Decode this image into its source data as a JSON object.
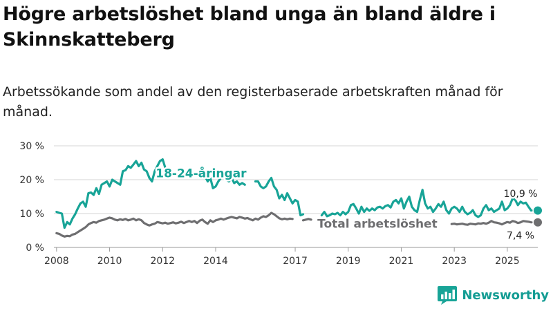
{
  "title": "Högre arbetslöshet bland unga än bland äldre i Skinnskatteberg",
  "subtitle": "Arbetssökande som andel av den registerbaserade arbetskraften månad för månad.",
  "brand": {
    "name": "Newsworthy",
    "icon": "newsworthy-logo-icon"
  },
  "colors": {
    "youth": "#18a497",
    "total": "#6e6e70",
    "grid": "#d6d6d6",
    "text": "#333333"
  },
  "chart_data": {
    "type": "line",
    "title": "Högre arbetslöshet bland unga än bland äldre i Skinnskatteberg",
    "xlabel": "",
    "ylabel": "",
    "ylim": [
      0,
      30
    ],
    "xlim": [
      2007.9,
      2026.15
    ],
    "yticks": [
      0,
      10,
      20,
      30
    ],
    "ytick_labels": [
      "0 %",
      "10 %",
      "20 %",
      "30 %"
    ],
    "xticks": [
      2008,
      2010,
      2012,
      2014,
      2017,
      2019,
      2021,
      2023,
      2025
    ],
    "xtick_labels": [
      "2008",
      "2010",
      "2012",
      "2014",
      "2017",
      "2019",
      "2021",
      "2023",
      "2025"
    ],
    "legend": "inline labels on lines",
    "series": [
      {
        "name": "18-24-åringar",
        "label": "18-24-åringar",
        "end_label": "10,9 %",
        "last_value": 10.9,
        "points": [
          [
            2008.0,
            10.5
          ],
          [
            2008.1,
            10.2
          ],
          [
            2008.2,
            10.0
          ],
          [
            2008.3,
            5.8
          ],
          [
            2008.4,
            7.5
          ],
          [
            2008.5,
            6.8
          ],
          [
            2008.6,
            8.5
          ],
          [
            2008.7,
            9.8
          ],
          [
            2008.8,
            11.5
          ],
          [
            2008.9,
            13.0
          ],
          [
            2009.0,
            13.5
          ],
          [
            2009.1,
            12.0
          ],
          [
            2009.2,
            16.0
          ],
          [
            2009.3,
            16.2
          ],
          [
            2009.4,
            15.5
          ],
          [
            2009.5,
            17.5
          ],
          [
            2009.6,
            15.8
          ],
          [
            2009.7,
            18.5
          ],
          [
            2009.8,
            19.0
          ],
          [
            2009.9,
            19.5
          ],
          [
            2010.0,
            18.0
          ],
          [
            2010.1,
            20.0
          ],
          [
            2010.2,
            19.5
          ],
          [
            2010.3,
            19.0
          ],
          [
            2010.4,
            18.5
          ],
          [
            2010.5,
            22.5
          ],
          [
            2010.6,
            22.8
          ],
          [
            2010.7,
            24.0
          ],
          [
            2010.8,
            23.5
          ],
          [
            2010.9,
            24.5
          ],
          [
            2011.0,
            25.5
          ],
          [
            2011.1,
            24.0
          ],
          [
            2011.2,
            25.0
          ],
          [
            2011.3,
            23.0
          ],
          [
            2011.4,
            22.5
          ],
          [
            2011.5,
            20.5
          ],
          [
            2011.6,
            19.5
          ],
          [
            2011.7,
            22.5
          ],
          [
            2011.8,
            24.0
          ],
          [
            2011.9,
            25.5
          ],
          [
            2012.0,
            26.0
          ],
          [
            2012.1,
            23.5
          ],
          null,
          [
            2013.6,
            21.0
          ],
          [
            2013.7,
            19.5
          ],
          [
            2013.8,
            20.5
          ],
          [
            2013.9,
            17.5
          ],
          [
            2014.0,
            18.0
          ],
          [
            2014.1,
            19.5
          ],
          [
            2014.2,
            20.5
          ],
          null,
          [
            2014.4,
            20.0
          ],
          [
            2014.5,
            19.5
          ],
          [
            2014.6,
            20.5
          ],
          [
            2014.7,
            19.0
          ],
          [
            2014.8,
            19.5
          ],
          [
            2014.9,
            18.5
          ],
          [
            2015.0,
            19.0
          ],
          [
            2015.1,
            18.5
          ],
          null,
          [
            2015.5,
            19.5
          ],
          [
            2015.6,
            19.5
          ],
          [
            2015.7,
            18.0
          ],
          [
            2015.8,
            17.5
          ],
          [
            2015.9,
            18.0
          ],
          [
            2016.0,
            19.5
          ],
          [
            2016.1,
            20.5
          ],
          [
            2016.2,
            18.0
          ],
          [
            2016.3,
            17.0
          ],
          [
            2016.4,
            14.5
          ],
          [
            2016.5,
            15.5
          ],
          [
            2016.6,
            14.0
          ],
          [
            2016.7,
            16.0
          ],
          [
            2016.8,
            14.5
          ],
          [
            2016.9,
            13.0
          ],
          [
            2017.0,
            14.0
          ],
          [
            2017.1,
            13.5
          ],
          [
            2017.2,
            9.5
          ],
          [
            2017.3,
            9.8
          ],
          null,
          [
            2018.0,
            9.5
          ],
          [
            2018.1,
            10.5
          ],
          [
            2018.2,
            9.2
          ],
          [
            2018.3,
            9.5
          ],
          [
            2018.4,
            10.0
          ],
          [
            2018.5,
            9.8
          ],
          [
            2018.6,
            10.2
          ],
          [
            2018.7,
            9.5
          ],
          [
            2018.8,
            10.5
          ],
          [
            2018.9,
            9.8
          ],
          [
            2019.0,
            10.5
          ],
          [
            2019.1,
            12.5
          ],
          [
            2019.2,
            12.8
          ],
          [
            2019.3,
            11.5
          ],
          [
            2019.4,
            10.0
          ],
          [
            2019.5,
            12.0
          ],
          [
            2019.6,
            10.5
          ],
          [
            2019.7,
            11.5
          ],
          [
            2019.8,
            10.8
          ],
          [
            2019.9,
            11.5
          ],
          [
            2020.0,
            11.0
          ],
          [
            2020.1,
            11.8
          ],
          [
            2020.2,
            12.0
          ],
          [
            2020.3,
            11.5
          ],
          [
            2020.4,
            12.2
          ],
          [
            2020.5,
            12.5
          ],
          [
            2020.6,
            11.8
          ],
          [
            2020.7,
            13.5
          ],
          [
            2020.8,
            14.0
          ],
          [
            2020.9,
            13.0
          ],
          [
            2021.0,
            14.5
          ],
          [
            2021.1,
            11.5
          ],
          [
            2021.2,
            13.5
          ],
          [
            2021.3,
            15.0
          ],
          [
            2021.4,
            12.0
          ],
          [
            2021.5,
            11.0
          ],
          [
            2021.6,
            10.5
          ],
          [
            2021.7,
            14.0
          ],
          [
            2021.8,
            17.0
          ],
          [
            2021.9,
            13.0
          ],
          [
            2022.0,
            11.5
          ],
          [
            2022.1,
            12.0
          ],
          [
            2022.2,
            10.5
          ],
          [
            2022.3,
            11.5
          ],
          [
            2022.4,
            12.8
          ],
          [
            2022.5,
            12.0
          ],
          [
            2022.6,
            13.5
          ],
          [
            2022.7,
            11.0
          ],
          [
            2022.8,
            10.0
          ],
          [
            2022.9,
            11.5
          ],
          [
            2023.0,
            12.0
          ],
          [
            2023.1,
            11.5
          ],
          [
            2023.2,
            10.5
          ],
          [
            2023.3,
            12.0
          ],
          [
            2023.4,
            10.5
          ],
          [
            2023.5,
            9.8
          ],
          [
            2023.6,
            10.2
          ],
          [
            2023.7,
            11.0
          ],
          [
            2023.8,
            9.5
          ],
          [
            2023.9,
            9.0
          ],
          [
            2024.0,
            9.5
          ],
          [
            2024.1,
            11.5
          ],
          [
            2024.2,
            12.5
          ],
          [
            2024.3,
            11.0
          ],
          [
            2024.4,
            11.5
          ],
          [
            2024.5,
            10.5
          ],
          [
            2024.6,
            11.0
          ],
          [
            2024.7,
            11.5
          ],
          [
            2024.8,
            13.5
          ],
          [
            2024.9,
            11.0
          ],
          [
            2025.0,
            11.5
          ],
          [
            2025.1,
            12.5
          ],
          [
            2025.2,
            14.5
          ],
          [
            2025.3,
            14.0
          ],
          [
            2025.4,
            12.5
          ],
          [
            2025.5,
            13.5
          ],
          [
            2025.6,
            13.0
          ],
          [
            2025.7,
            13.2
          ],
          [
            2025.8,
            12.0
          ],
          [
            2025.9,
            10.9
          ]
        ]
      },
      {
        "name": "Total arbetslöshet",
        "label": "Total arbetslöshet",
        "end_label": "7,4 %",
        "last_value": 7.4,
        "points": [
          [
            2008.0,
            4.2
          ],
          [
            2008.1,
            4.0
          ],
          [
            2008.2,
            3.5
          ],
          [
            2008.3,
            3.2
          ],
          [
            2008.4,
            3.4
          ],
          [
            2008.5,
            3.3
          ],
          [
            2008.6,
            3.8
          ],
          [
            2008.7,
            4.0
          ],
          [
            2008.8,
            4.5
          ],
          [
            2008.9,
            5.0
          ],
          [
            2009.0,
            5.5
          ],
          [
            2009.1,
            6.0
          ],
          [
            2009.2,
            6.8
          ],
          [
            2009.3,
            7.2
          ],
          [
            2009.4,
            7.5
          ],
          [
            2009.5,
            7.3
          ],
          [
            2009.6,
            7.8
          ],
          [
            2009.7,
            8.0
          ],
          [
            2009.8,
            8.2
          ],
          [
            2009.9,
            8.5
          ],
          [
            2010.0,
            8.8
          ],
          [
            2010.1,
            8.6
          ],
          [
            2010.2,
            8.2
          ],
          [
            2010.3,
            8.0
          ],
          [
            2010.4,
            8.3
          ],
          [
            2010.5,
            8.1
          ],
          [
            2010.6,
            8.4
          ],
          [
            2010.7,
            8.0
          ],
          [
            2010.8,
            8.2
          ],
          [
            2010.9,
            8.5
          ],
          [
            2011.0,
            8.0
          ],
          [
            2011.1,
            8.3
          ],
          [
            2011.2,
            8.0
          ],
          [
            2011.3,
            7.2
          ],
          [
            2011.4,
            6.8
          ],
          [
            2011.5,
            6.5
          ],
          [
            2011.6,
            6.8
          ],
          [
            2011.7,
            7.0
          ],
          [
            2011.8,
            7.5
          ],
          [
            2011.9,
            7.3
          ],
          [
            2012.0,
            7.1
          ],
          [
            2012.1,
            7.3
          ],
          [
            2012.2,
            7.0
          ],
          [
            2012.3,
            7.2
          ],
          [
            2012.4,
            7.4
          ],
          [
            2012.5,
            7.1
          ],
          [
            2012.6,
            7.3
          ],
          [
            2012.7,
            7.6
          ],
          [
            2012.8,
            7.2
          ],
          [
            2012.9,
            7.5
          ],
          [
            2013.0,
            7.8
          ],
          [
            2013.1,
            7.5
          ],
          [
            2013.2,
            7.8
          ],
          [
            2013.3,
            7.2
          ],
          [
            2013.4,
            7.9
          ],
          [
            2013.5,
            8.2
          ],
          [
            2013.6,
            7.5
          ],
          [
            2013.7,
            7.0
          ],
          [
            2013.8,
            8.0
          ],
          [
            2013.9,
            7.5
          ],
          [
            2014.0,
            8.0
          ],
          [
            2014.1,
            8.2
          ],
          [
            2014.2,
            8.5
          ],
          [
            2014.3,
            8.2
          ],
          [
            2014.4,
            8.5
          ],
          [
            2014.5,
            8.8
          ],
          [
            2014.6,
            9.0
          ],
          [
            2014.7,
            8.8
          ],
          [
            2014.8,
            8.6
          ],
          [
            2014.9,
            9.0
          ],
          [
            2015.0,
            8.8
          ],
          [
            2015.1,
            8.5
          ],
          [
            2015.2,
            8.7
          ],
          [
            2015.3,
            8.3
          ],
          [
            2015.4,
            8.0
          ],
          [
            2015.5,
            8.5
          ],
          [
            2015.6,
            8.2
          ],
          [
            2015.7,
            8.8
          ],
          [
            2015.8,
            9.2
          ],
          [
            2015.9,
            9.0
          ],
          [
            2016.0,
            9.5
          ],
          [
            2016.1,
            10.2
          ],
          [
            2016.2,
            9.8
          ],
          [
            2016.3,
            9.2
          ],
          [
            2016.4,
            8.6
          ],
          [
            2016.5,
            8.3
          ],
          [
            2016.6,
            8.5
          ],
          [
            2016.7,
            8.3
          ],
          [
            2016.8,
            8.5
          ],
          [
            2016.9,
            8.4
          ],
          null,
          [
            2017.3,
            8.0
          ],
          [
            2017.4,
            8.2
          ],
          [
            2017.5,
            8.4
          ],
          [
            2017.6,
            8.2
          ],
          null,
          [
            2022.9,
            6.9
          ],
          [
            2023.0,
            7.0
          ],
          [
            2023.1,
            6.8
          ],
          [
            2023.2,
            6.9
          ],
          [
            2023.3,
            7.0
          ],
          [
            2023.4,
            6.8
          ],
          [
            2023.5,
            6.7
          ],
          [
            2023.6,
            7.0
          ],
          [
            2023.7,
            6.9
          ],
          [
            2023.8,
            6.8
          ],
          [
            2023.9,
            7.1
          ],
          [
            2024.0,
            7.0
          ],
          [
            2024.1,
            7.2
          ],
          [
            2024.2,
            7.0
          ],
          [
            2024.3,
            7.3
          ],
          [
            2024.4,
            7.8
          ],
          [
            2024.5,
            7.4
          ],
          [
            2024.6,
            7.3
          ],
          [
            2024.7,
            7.1
          ],
          [
            2024.8,
            6.8
          ],
          [
            2024.9,
            7.2
          ],
          [
            2025.0,
            7.5
          ],
          [
            2025.1,
            7.3
          ],
          [
            2025.2,
            7.8
          ],
          [
            2025.3,
            7.6
          ],
          [
            2025.4,
            7.2
          ],
          [
            2025.5,
            7.4
          ],
          [
            2025.6,
            7.8
          ],
          [
            2025.7,
            7.7
          ],
          [
            2025.8,
            7.6
          ],
          [
            2025.9,
            7.4
          ]
        ]
      }
    ]
  }
}
